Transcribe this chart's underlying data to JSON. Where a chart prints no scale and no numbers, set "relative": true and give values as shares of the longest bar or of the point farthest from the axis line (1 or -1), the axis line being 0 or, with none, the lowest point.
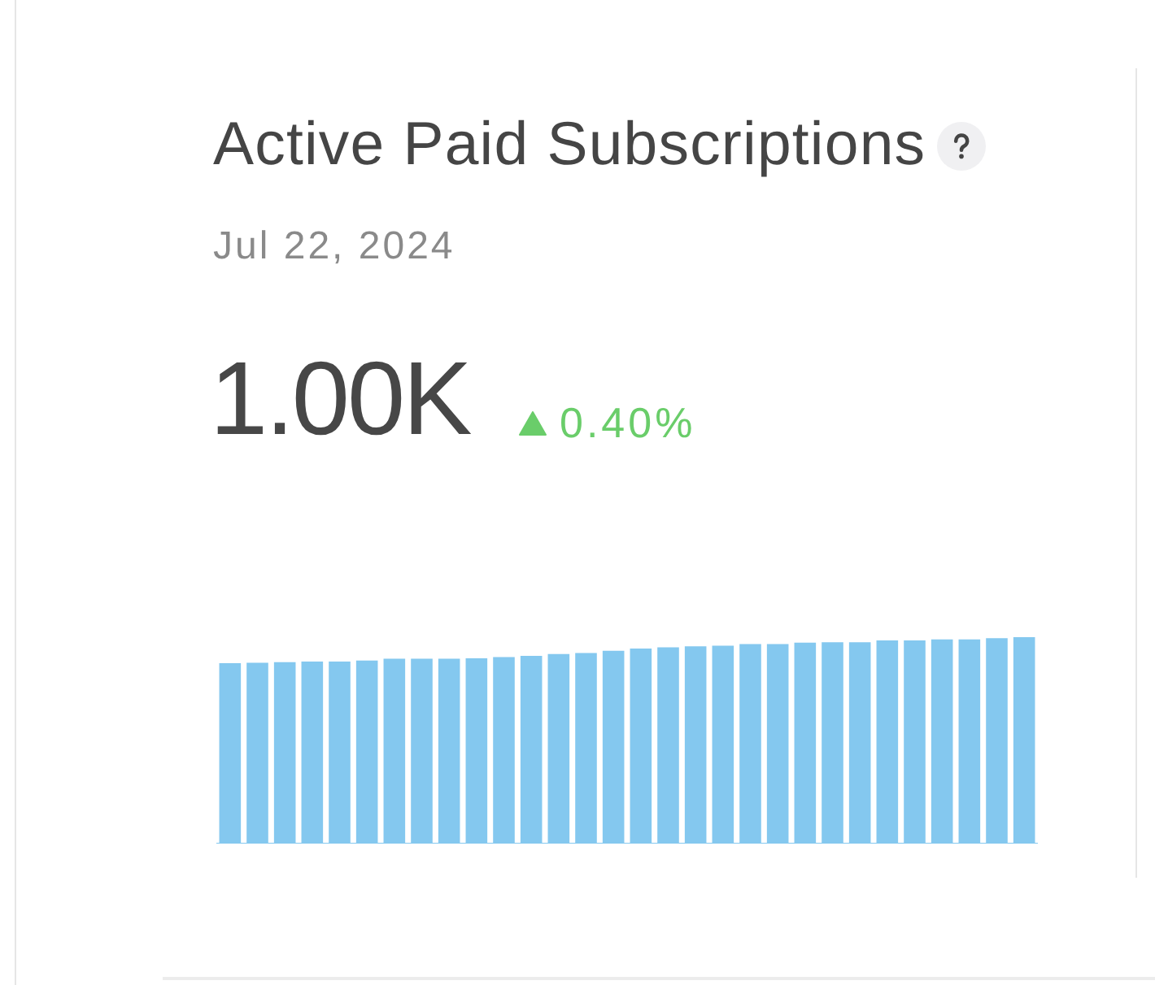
{
  "chart_data": {
    "type": "bar",
    "title": "Active Paid Subscriptions",
    "subtitle": "Jul 22, 2024",
    "annotations": [
      "1.00K",
      "0.40%"
    ],
    "categories": [
      null,
      null,
      null,
      null,
      null,
      null,
      null,
      null,
      null,
      null,
      null,
      null,
      null,
      null,
      null,
      null,
      null,
      null,
      null,
      null,
      null,
      null,
      null,
      null,
      null,
      null,
      null,
      null,
      null,
      null
    ],
    "values": [
      0.874,
      0.876,
      0.879,
      0.882,
      0.882,
      0.887,
      0.896,
      0.896,
      0.896,
      0.898,
      0.904,
      0.909,
      0.918,
      0.923,
      0.934,
      0.945,
      0.951,
      0.956,
      0.959,
      0.967,
      0.967,
      0.973,
      0.975,
      0.975,
      0.984,
      0.984,
      0.989,
      0.989,
      0.995,
      1
    ],
    "color": "#84c8ef",
    "relative": true
  }
}
